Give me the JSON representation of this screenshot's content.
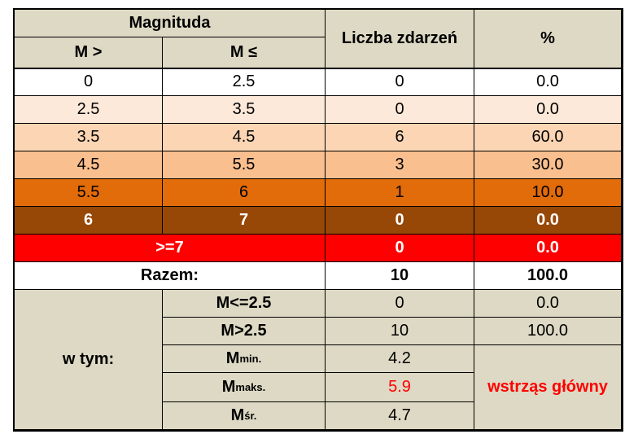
{
  "header": {
    "magnitude": "Magnituda",
    "m_gt": "M >",
    "m_le": "M ≤",
    "count": "Liczba zdarzeń",
    "percent": "%"
  },
  "rows": [
    {
      "from": "0",
      "to": "2.5",
      "count": "0",
      "pct": "0.0",
      "color": "#ffffff"
    },
    {
      "from": "2.5",
      "to": "3.5",
      "count": "0",
      "pct": "0.0",
      "color": "#fde9d9"
    },
    {
      "from": "3.5",
      "to": "4.5",
      "count": "6",
      "pct": "60.0",
      "color": "#fcd5b4"
    },
    {
      "from": "4.5",
      "to": "5.5",
      "count": "3",
      "pct": "30.0",
      "color": "#fabf8f"
    },
    {
      "from": "5.5",
      "to": "6",
      "count": "1",
      "pct": "10.0",
      "color": "#e26b0a"
    },
    {
      "from": "6",
      "to": "7",
      "count": "0",
      "pct": "0.0",
      "color": "#974706"
    }
  ],
  "ge7": {
    "label": ">=7",
    "count": "0",
    "pct": "0.0",
    "color": "#ff0000"
  },
  "total": {
    "label": "Razem:",
    "count": "10",
    "pct": "100.0"
  },
  "breakdown": {
    "label": "w tym:",
    "le25": {
      "label": "M<=2.5",
      "count": "0",
      "pct": "0.0"
    },
    "gt25": {
      "label": "M>2.5",
      "count": "10",
      "pct": "100.0"
    },
    "min": {
      "base": "M",
      "sub": "min.",
      "value": "4.2"
    },
    "max": {
      "base": "M",
      "sub": "maks.",
      "value": "5.9"
    },
    "avg": {
      "base": "M",
      "sub": "śr.",
      "value": "4.7"
    },
    "main_shock": "wstrząs główny"
  },
  "colors": {
    "header_bg": "#ddd9c4",
    "highlight_red": "#ff0000"
  }
}
